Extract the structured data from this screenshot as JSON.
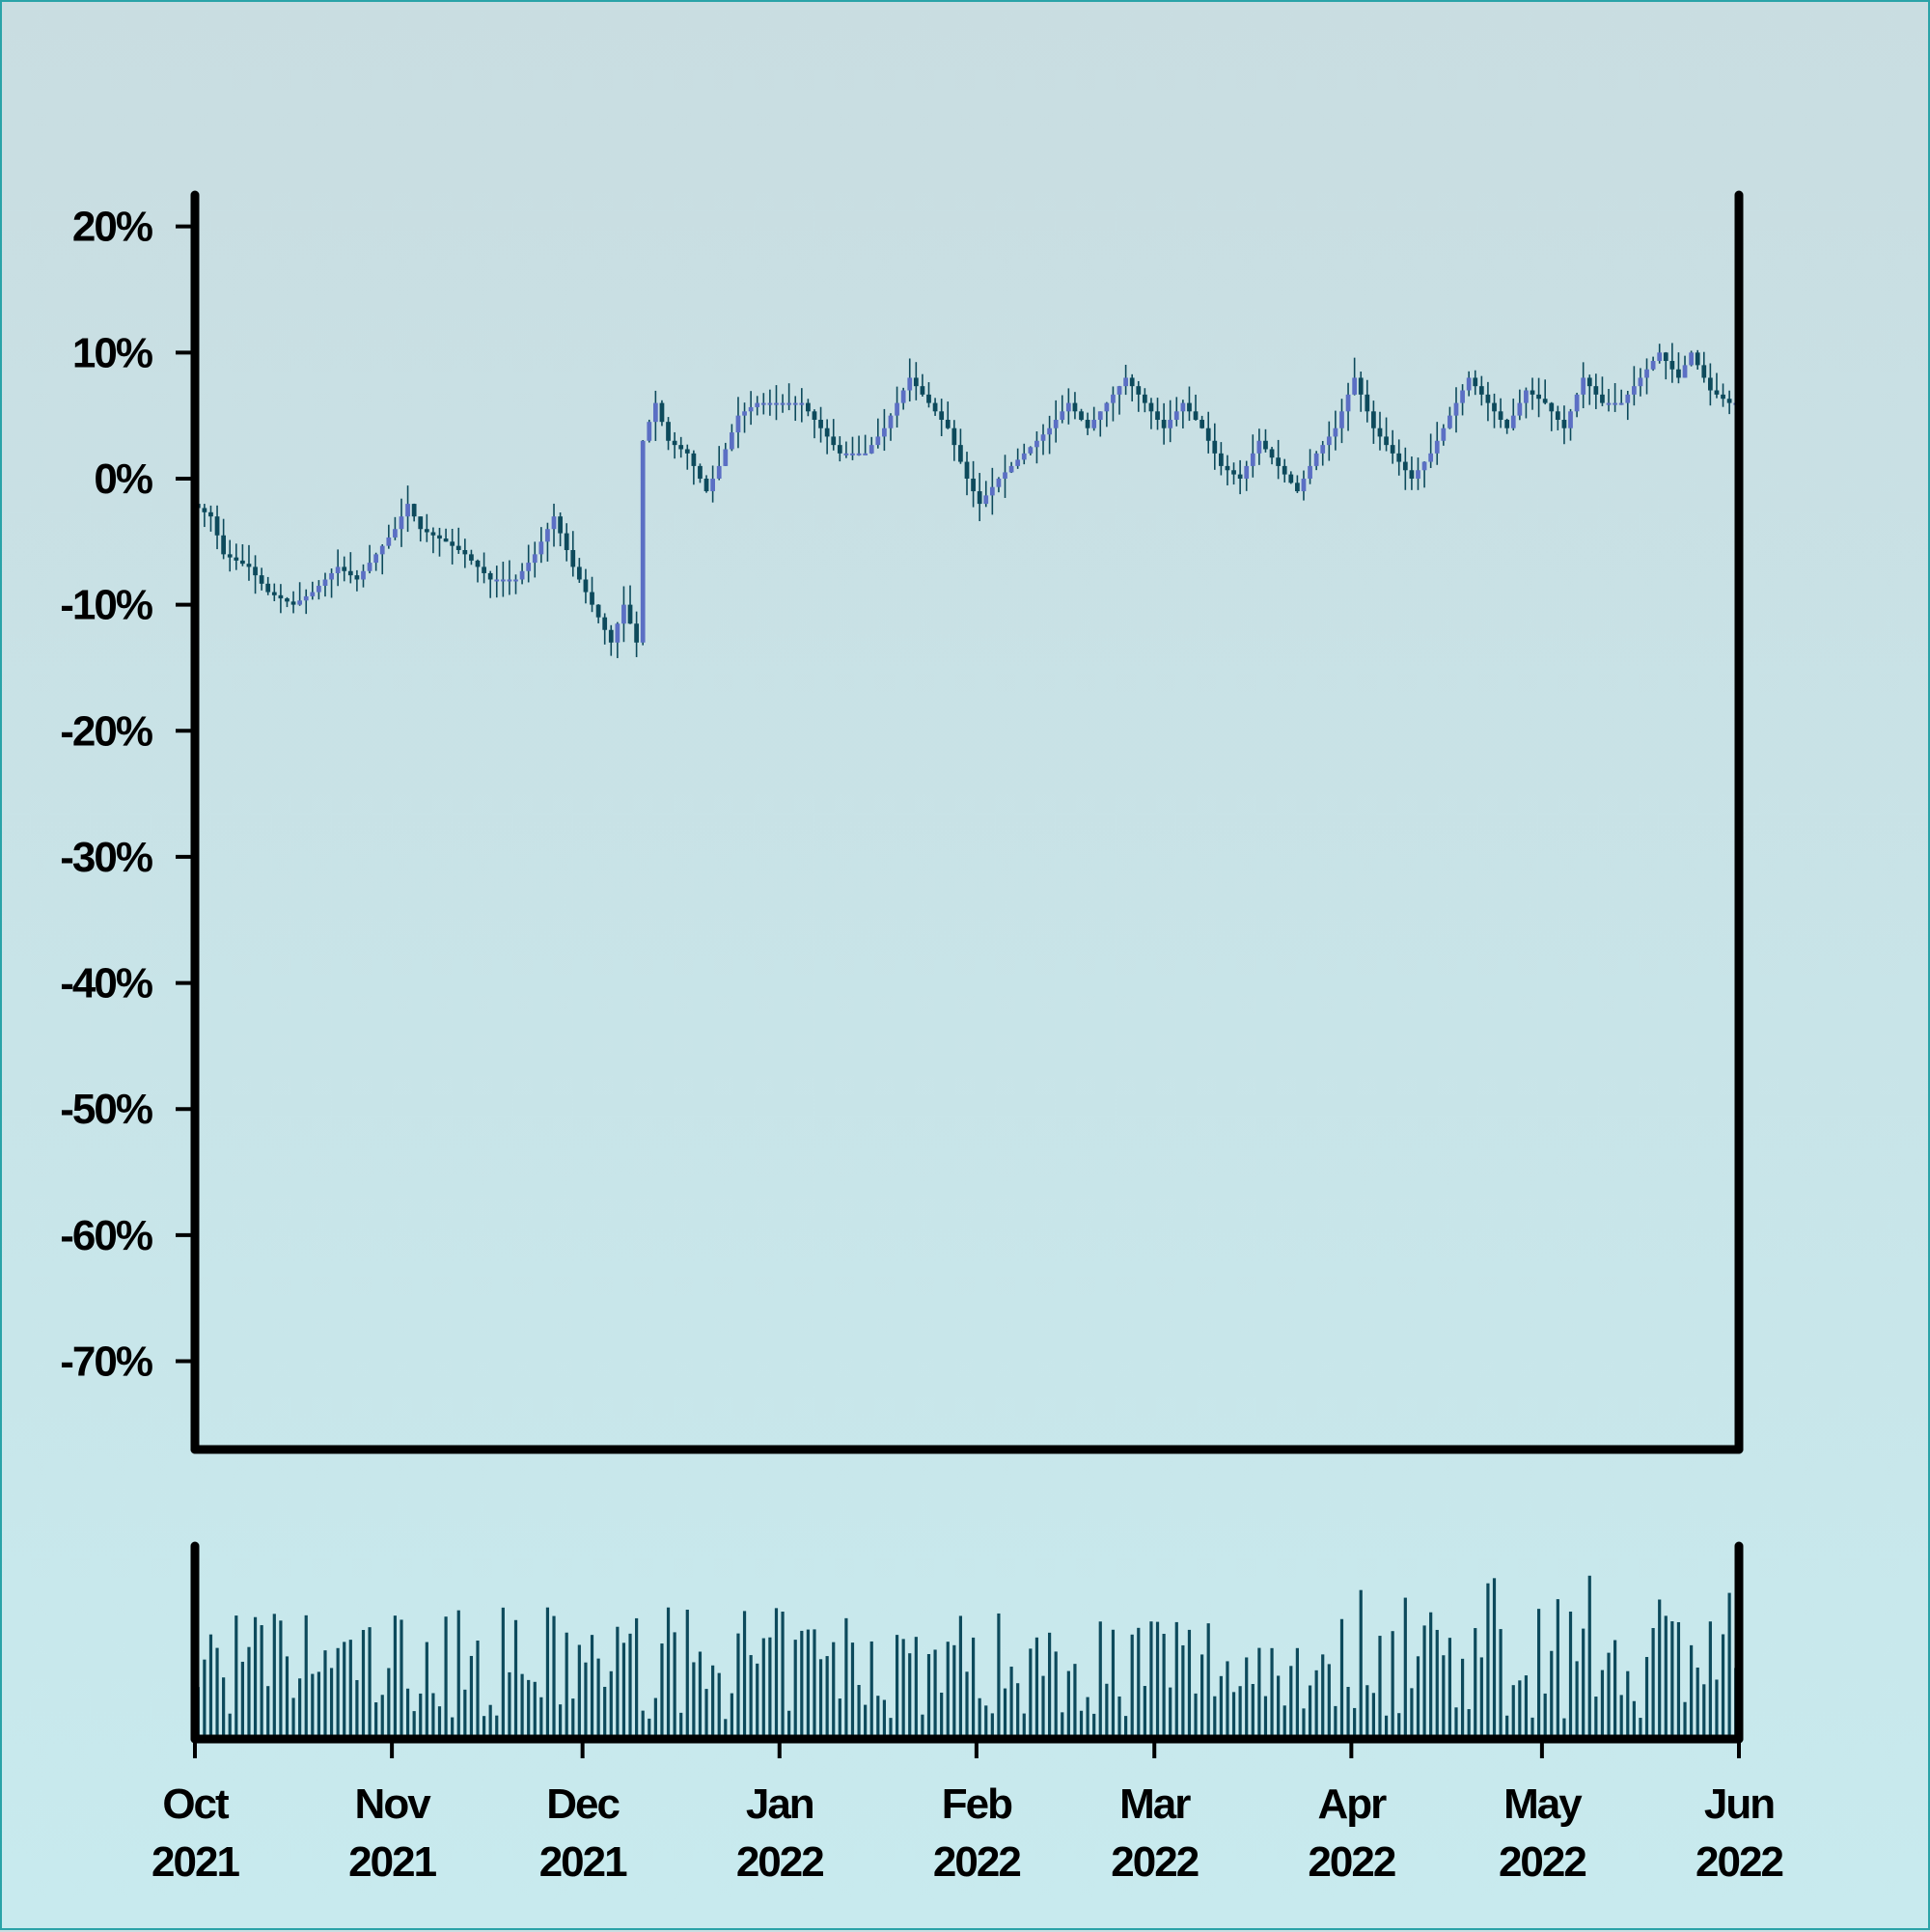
{
  "chart_data": {
    "type": "candlestick",
    "colors": {
      "up": "#5b6fc4",
      "down": "#0d4a5c",
      "wick": "#0d4a5c",
      "volume": "#0d4a5c",
      "axis": "#000000",
      "background_top": "#c9dde1",
      "background_bottom": "#c8eaee"
    },
    "y_axis": {
      "ticks": [
        20,
        10,
        0,
        -10,
        -20,
        -30,
        -40,
        -50,
        -60,
        -70
      ],
      "tick_labels": [
        "20%",
        "10%",
        "0%",
        "-10%",
        "-20%",
        "-30%",
        "-40%",
        "-50%",
        "-60%",
        "-70%"
      ],
      "ylim": [
        -77,
        22.5
      ]
    },
    "x_axis": {
      "xlim": [
        "2021-10-01",
        "2022-06-01"
      ],
      "ticks": [
        "2021-10-01",
        "2021-11-01",
        "2021-12-01",
        "2022-01-01",
        "2022-02-01",
        "2022-03-01",
        "2022-04-01",
        "2022-05-01",
        "2022-06-01"
      ],
      "tick_labels_line1": [
        "Oct",
        "Nov",
        "Dec",
        "Jan",
        "Feb",
        "Mar",
        "Apr",
        "May",
        "Jun"
      ],
      "tick_labels_line2": [
        "2021",
        "2021",
        "2021",
        "2022",
        "2022",
        "2022",
        "2022",
        "2022",
        "2022"
      ]
    },
    "close_series": {
      "unit": "percent",
      "points": [
        [
          "2021-10-01",
          -2
        ],
        [
          "2021-10-04",
          -3
        ],
        [
          "2021-10-06",
          -6
        ],
        [
          "2021-10-10",
          -7
        ],
        [
          "2021-10-13",
          -9
        ],
        [
          "2021-10-17",
          -10
        ],
        [
          "2021-10-20",
          -9
        ],
        [
          "2021-10-24",
          -7
        ],
        [
          "2021-10-27",
          -8
        ],
        [
          "2021-10-30",
          -6
        ],
        [
          "2021-11-02",
          -4
        ],
        [
          "2021-11-04",
          -2
        ],
        [
          "2021-11-06",
          -4
        ],
        [
          "2021-11-10",
          -5
        ],
        [
          "2021-11-13",
          -6
        ],
        [
          "2021-11-17",
          -8
        ],
        [
          "2021-11-21",
          -8
        ],
        [
          "2021-11-24",
          -6
        ],
        [
          "2021-11-27",
          -3
        ],
        [
          "2021-11-30",
          -7
        ],
        [
          "2021-12-03",
          -10
        ],
        [
          "2021-12-06",
          -13
        ],
        [
          "2021-12-08",
          -10
        ],
        [
          "2021-12-10",
          -13
        ],
        [
          "2021-12-11",
          3
        ],
        [
          "2021-12-13",
          6
        ],
        [
          "2021-12-15",
          3
        ],
        [
          "2021-12-18",
          2
        ],
        [
          "2021-12-21",
          -1
        ],
        [
          "2021-12-23",
          1
        ],
        [
          "2021-12-26",
          5
        ],
        [
          "2021-12-29",
          6
        ],
        [
          "2022-01-01",
          6
        ],
        [
          "2022-01-05",
          6
        ],
        [
          "2022-01-08",
          4
        ],
        [
          "2022-01-11",
          2
        ],
        [
          "2022-01-15",
          2
        ],
        [
          "2022-01-18",
          4
        ],
        [
          "2022-01-22",
          8
        ],
        [
          "2022-01-25",
          6
        ],
        [
          "2022-01-28",
          4
        ],
        [
          "2022-01-31",
          0
        ],
        [
          "2022-02-02",
          -2
        ],
        [
          "2022-02-05",
          0
        ],
        [
          "2022-02-09",
          2
        ],
        [
          "2022-02-13",
          4
        ],
        [
          "2022-02-16",
          6
        ],
        [
          "2022-02-19",
          4
        ],
        [
          "2022-02-22",
          6
        ],
        [
          "2022-02-25",
          8
        ],
        [
          "2022-02-28",
          6
        ],
        [
          "2022-03-03",
          4
        ],
        [
          "2022-03-06",
          6
        ],
        [
          "2022-03-09",
          4
        ],
        [
          "2022-03-12",
          1
        ],
        [
          "2022-03-15",
          0
        ],
        [
          "2022-03-18",
          3
        ],
        [
          "2022-03-21",
          1
        ],
        [
          "2022-03-24",
          -1
        ],
        [
          "2022-03-27",
          2
        ],
        [
          "2022-03-30",
          4
        ],
        [
          "2022-04-02",
          8
        ],
        [
          "2022-04-05",
          4
        ],
        [
          "2022-04-08",
          2
        ],
        [
          "2022-04-11",
          0
        ],
        [
          "2022-04-14",
          2
        ],
        [
          "2022-04-17",
          5
        ],
        [
          "2022-04-20",
          8
        ],
        [
          "2022-04-23",
          6
        ],
        [
          "2022-04-26",
          4
        ],
        [
          "2022-04-29",
          7
        ],
        [
          "2022-05-02",
          6
        ],
        [
          "2022-05-05",
          4
        ],
        [
          "2022-05-08",
          8
        ],
        [
          "2022-05-11",
          6
        ],
        [
          "2022-05-14",
          6
        ],
        [
          "2022-05-17",
          8
        ],
        [
          "2022-05-20",
          10
        ],
        [
          "2022-05-23",
          8
        ],
        [
          "2022-05-25",
          10
        ],
        [
          "2022-05-28",
          7
        ],
        [
          "2022-05-31",
          6
        ],
        [
          "2022-06-03",
          6
        ],
        [
          "2022-06-06",
          11
        ],
        [
          "2022-06-09",
          8
        ],
        [
          "2022-06-12",
          10
        ],
        [
          "2022-06-14",
          11
        ]
      ]
    },
    "candles_note": "",
    "volume": {}
  }
}
